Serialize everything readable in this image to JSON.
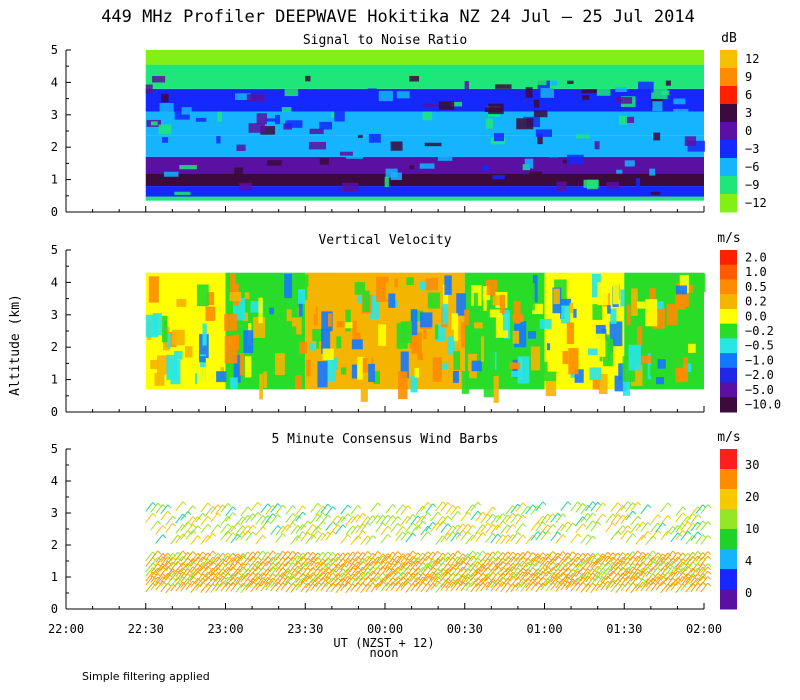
{
  "title": "449 MHz Profiler DEEPWAVE Hokitika NZ 24 Jul – 25 Jul 2014",
  "ylabel": "Altitude (km)",
  "xlabel": "UT  (NZST + 12)",
  "x_sublabel": "noon",
  "footnote": "Simple filtering applied",
  "x_ticks": [
    "22:00",
    "22:30",
    "23:00",
    "23:30",
    "00:00",
    "00:30",
    "01:00",
    "01:30",
    "02:00"
  ],
  "y_ticks": [
    "0",
    "1",
    "2",
    "3",
    "4",
    "5"
  ],
  "chart_data": [
    {
      "type": "heatmap",
      "title": "Signal to Noise Ratio",
      "units": "dB",
      "x_range": [
        "22:00",
        "02:00"
      ],
      "data_x_range": [
        "22:30",
        "02:00"
      ],
      "ylim": [
        0,
        5
      ],
      "colorbar_labels": [
        "12",
        "9",
        "6",
        "3",
        "0",
        "−3",
        "−6",
        "−9",
        "−12"
      ],
      "colorbar_colors": [
        "#f5c000",
        "#ff8c00",
        "#ff2000",
        "#3c0a3c",
        "#5a10a0",
        "#1428ff",
        "#14b4ff",
        "#1ee678",
        "#82f014"
      ],
      "altitude_profile": [
        {
          "altitude_km": 0.35,
          "snr_db": -9
        },
        {
          "altitude_km": 0.6,
          "snr_db": -3
        },
        {
          "altitude_km": 1.0,
          "snr_db": 2
        },
        {
          "altitude_km": 1.4,
          "snr_db": -1
        },
        {
          "altitude_km": 2.0,
          "snr_db": -5
        },
        {
          "altitude_km": 2.7,
          "snr_db": -6
        },
        {
          "altitude_km": 3.5,
          "snr_db": -3
        },
        {
          "altitude_km": 4.1,
          "snr_db": -9
        },
        {
          "altitude_km": 5.0,
          "snr_db": -12
        }
      ]
    },
    {
      "type": "heatmap",
      "title": "Vertical Velocity",
      "units": "m/s",
      "x_range": [
        "22:00",
        "02:00"
      ],
      "data_x_range": [
        "22:30",
        "02:00"
      ],
      "ylim": [
        0,
        5
      ],
      "altitude_range_km": [
        0.7,
        4.3
      ],
      "colorbar_labels": [
        "2.0",
        "1.0",
        "0.5",
        "0.2",
        "0.0",
        "−0.2",
        "−0.5",
        "−1.0",
        "−2.0",
        "−5.0",
        "−10.0"
      ],
      "colorbar_colors": [
        "#ff2000",
        "#ff5a00",
        "#ff8c00",
        "#f5b400",
        "#ffff00",
        "#28dc28",
        "#28e6e6",
        "#1478ff",
        "#1e28e6",
        "#5a10a0",
        "#3c0a3c"
      ],
      "segments": [
        {
          "t0": "22:30",
          "t1": "23:00",
          "value_ms": 0.0
        },
        {
          "t0": "23:00",
          "t1": "23:30",
          "value_ms": -0.2
        },
        {
          "t0": "23:30",
          "t1": "00:00",
          "value_ms": 0.2
        },
        {
          "t0": "00:00",
          "t1": "00:30",
          "value_ms": 0.2
        },
        {
          "t0": "00:30",
          "t1": "01:00",
          "value_ms": -0.2
        },
        {
          "t0": "01:00",
          "t1": "01:30",
          "value_ms": 0.0
        },
        {
          "t0": "01:30",
          "t1": "02:00",
          "value_ms": -0.2
        }
      ]
    },
    {
      "type": "scatter",
      "title": "5 Minute Consensus Wind Barbs",
      "units": "m/s",
      "x_range": [
        "22:00",
        "02:00"
      ],
      "ylim": [
        0,
        5
      ],
      "colorbar_labels": [
        "30",
        "20",
        "10",
        "4",
        "0"
      ],
      "colorbar_colors": [
        "#ff1e1e",
        "#ff8c00",
        "#f5c800",
        "#96e628",
        "#1ed228",
        "#14b4ff",
        "#1428ff",
        "#5a10a0"
      ],
      "layers": [
        {
          "t0": "22:30",
          "t1": "02:00",
          "altitude_km": [
            0.5,
            1.6
          ],
          "speed_ms": 20
        },
        {
          "t0": "22:30",
          "t1": "02:00",
          "altitude_km": [
            2.0,
            3.2
          ],
          "speed_ms": 12
        }
      ]
    }
  ]
}
